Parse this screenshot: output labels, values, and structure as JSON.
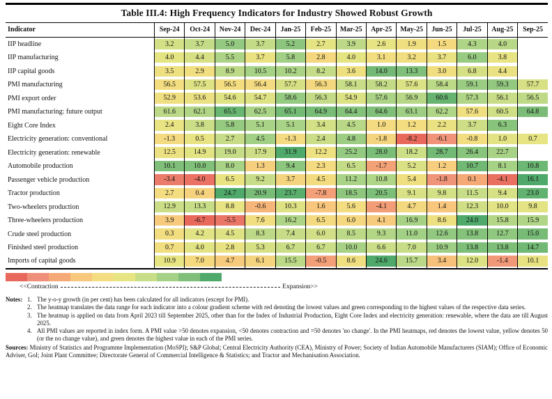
{
  "title": "Table III.4: High Frequency Indicators for Industry Showed Robust Growth",
  "chart_data": {
    "type": "heatmap",
    "indicator_header": "Indicator",
    "columns": [
      "Sep-24",
      "Oct-24",
      "Nov-24",
      "Dec-24",
      "Jan-25",
      "Feb-25",
      "Mar-25",
      "Apr-25",
      "May-25",
      "Jun-25",
      "Jul-25",
      "Aug-25",
      "Sep-25"
    ],
    "rows": [
      {
        "label": "IIP headline",
        "values": [
          "3.2",
          "3.7",
          "5.0",
          "3.7",
          "5.2",
          "2.7",
          "3.9",
          "2.6",
          "1.9",
          "1.5",
          "4.3",
          "4.0",
          ""
        ],
        "scale": [
          -2.2,
          6.5
        ]
      },
      {
        "label": "IIP manufacturing",
        "values": [
          "4.0",
          "4.4",
          "5.5",
          "3.7",
          "5.8",
          "2.8",
          "4.0",
          "3.1",
          "3.2",
          "3.7",
          "6.0",
          "3.8",
          ""
        ],
        "scale": [
          -0.5,
          7.5
        ]
      },
      {
        "label": "IIP capital goods",
        "values": [
          "3.5",
          "2.9",
          "8.9",
          "10.5",
          "10.2",
          "8.2",
          "3.6",
          "14.0",
          "13.3",
          "3.0",
          "6.8",
          "4.4",
          ""
        ],
        "scale": [
          -8.2,
          16.0
        ]
      },
      {
        "label": "PMI manufacturing",
        "values": [
          "56.5",
          "57.5",
          "56.5",
          "56.4",
          "57.7",
          "56.3",
          "58.1",
          "58.2",
          "57.6",
          "58.4",
          "59.1",
          "59.3",
          "57.7"
        ],
        "scale": [
          53.3,
          60.5
        ]
      },
      {
        "label": "PMI export order",
        "values": [
          "52.9",
          "53.6",
          "54.6",
          "54.7",
          "58.6",
          "56.3",
          "54.9",
          "57.6",
          "56.9",
          "60.6",
          "57.3",
          "56.1",
          "56.5"
        ],
        "scale": [
          45.2,
          61.5
        ]
      },
      {
        "label": "PMI manufacturing: future output",
        "values": [
          "61.6",
          "62.1",
          "65.5",
          "62.5",
          "65.1",
          "64.9",
          "64.4",
          "64.6",
          "63.1",
          "62.2",
          "57.6",
          "60.5",
          "64.8"
        ],
        "scale": [
          49.7,
          66.5
        ]
      },
      {
        "label": "Eight Core Index",
        "values": [
          "2.4",
          "3.8",
          "5.8",
          "5.1",
          "5.1",
          "3.4",
          "4.5",
          "1.0",
          "1.2",
          "2.2",
          "3.7",
          "6.3",
          ""
        ],
        "scale": [
          -4.2,
          8.0
        ]
      },
      {
        "label": "Electricity generation: conventional",
        "values": [
          "-1.3",
          "0.5",
          "2.7",
          "4.5",
          "-1.3",
          "2.4",
          "4.8",
          "-1.8",
          "-8.2",
          "-6.1",
          "-0.8",
          "1.0",
          "0.7"
        ],
        "scale": [
          -8.2,
          8.0
        ]
      },
      {
        "label": "Electricity generation: renewable",
        "values": [
          "12.5",
          "14.9",
          "19.0",
          "17.9",
          "31.9",
          "12.2",
          "25.2",
          "28.0",
          "18.2",
          "28.7",
          "26.4",
          "22.7",
          ""
        ],
        "scale": [
          -7.5,
          31.9
        ]
      },
      {
        "label": "Automobile production",
        "values": [
          "10.1",
          "10.0",
          "8.0",
          "1.3",
          "9.4",
          "2.3",
          "6.5",
          "-1.7",
          "5.2",
          "1.2",
          "10.7",
          "8.1",
          "10.8"
        ],
        "scale": [
          -5.0,
          12.0
        ]
      },
      {
        "label": "Passenger vehicle production",
        "values": [
          "-3.4",
          "-4.0",
          "6.5",
          "9.2",
          "3.7",
          "4.5",
          "11.2",
          "10.8",
          "5.4",
          "-1.8",
          "0.1",
          "-4.1",
          "16.1"
        ],
        "scale": [
          -4.5,
          16.1
        ]
      },
      {
        "label": "Tractor production",
        "values": [
          "2.7",
          "0.4",
          "24.7",
          "20.9",
          "23.7",
          "-7.8",
          "18.5",
          "20.5",
          "9.1",
          "9.8",
          "11.5",
          "9.4",
          "23.0"
        ],
        "scale": [
          -15.0,
          24.7
        ]
      },
      {
        "label": "Two-wheelers production",
        "values": [
          "12.9",
          "13.3",
          "8.8",
          "-0.6",
          "10.3",
          "1.6",
          "5.6",
          "-4.1",
          "4.7",
          "1.4",
          "12.3",
          "10.0",
          "9.8"
        ],
        "scale": [
          -10.0,
          25.0
        ]
      },
      {
        "label": "Three-wheelers production",
        "values": [
          "3.9",
          "-6.7",
          "-5.5",
          "7.6",
          "16.2",
          "6.5",
          "6.0",
          "4.1",
          "16.9",
          "8.6",
          "24.0",
          "15.8",
          "15.9"
        ],
        "scale": [
          -6.7,
          24.0
        ]
      },
      {
        "label": "Crude steel production",
        "values": [
          "0.3",
          "4.2",
          "4.5",
          "8.3",
          "7.4",
          "6.0",
          "8.5",
          "9.3",
          "11.0",
          "12.6",
          "13.8",
          "12.7",
          "15.0"
        ],
        "scale": [
          -14.4,
          18.0
        ]
      },
      {
        "label": "Finished steel production",
        "values": [
          "0.7",
          "4.0",
          "2.8",
          "5.3",
          "6.7",
          "6.7",
          "10.0",
          "6.6",
          "7.0",
          "10.9",
          "13.8",
          "13.8",
          "14.7"
        ],
        "scale": [
          -13.3,
          17.0
        ]
      },
      {
        "label": "Imports of capital goods",
        "values": [
          "10.9",
          "7.0",
          "4.7",
          "6.1",
          "15.5",
          "-0.5",
          "8.6",
          "24.6",
          "15.7",
          "3.4",
          "12.0",
          "-1.4",
          "10.1"
        ],
        "scale": [
          -6.0,
          24.6
        ]
      }
    ],
    "colors": {
      "ramp": [
        "#e8695c",
        "#ef8f7a",
        "#f5a976",
        "#f8c87d",
        "#f3dd80",
        "#e6e483",
        "#c8dd87",
        "#a4d186",
        "#7fbf79",
        "#4fa96a"
      ],
      "text": "#111111",
      "rule": "#000000"
    },
    "legend_position": "bottom-left",
    "grid": "vertical-only"
  },
  "legend": {
    "left": "<<Contraction",
    "right": "Expansion>>"
  },
  "notes": {
    "label": "Notes:",
    "items": [
      "The y-o-y growth (in per cent) has been calculated for all indicators (except for PMI).",
      "The heatmap translates the data range for each indicator into a colour gradient scheme with red denoting the lowest values and green corresponding to the highest values of the respective data series.",
      "The heatmap is applied on data from April 2023 till September 2025, other than for the Index of Industrial Production, Eight Core Index and electricity generation: renewable, where the data are till August 2025.",
      "All PMI values are reported in index form. A PMI value >50 denotes expansion, <50 denotes contraction and =50 denotes 'no change'. In the PMI heatmaps, red denotes the lowest value, yellow denotes 50 (or the no change value), and green denotes the highest value in each of the PMI series."
    ]
  },
  "sources": {
    "label": "Sources:",
    "text": " Ministry of Statistics and Programme Implementation (MoSPI); S&P Global; Central Electricity Authority (CEA), Ministry of Power; Society of Indian Automobile Manufacturers (SIAM); Office of Economic Adviser, GoI; Joint Plant Committee; Directorate General of Commercial Intelligence & Statistics; and Tractor and Mechanisation Association."
  }
}
